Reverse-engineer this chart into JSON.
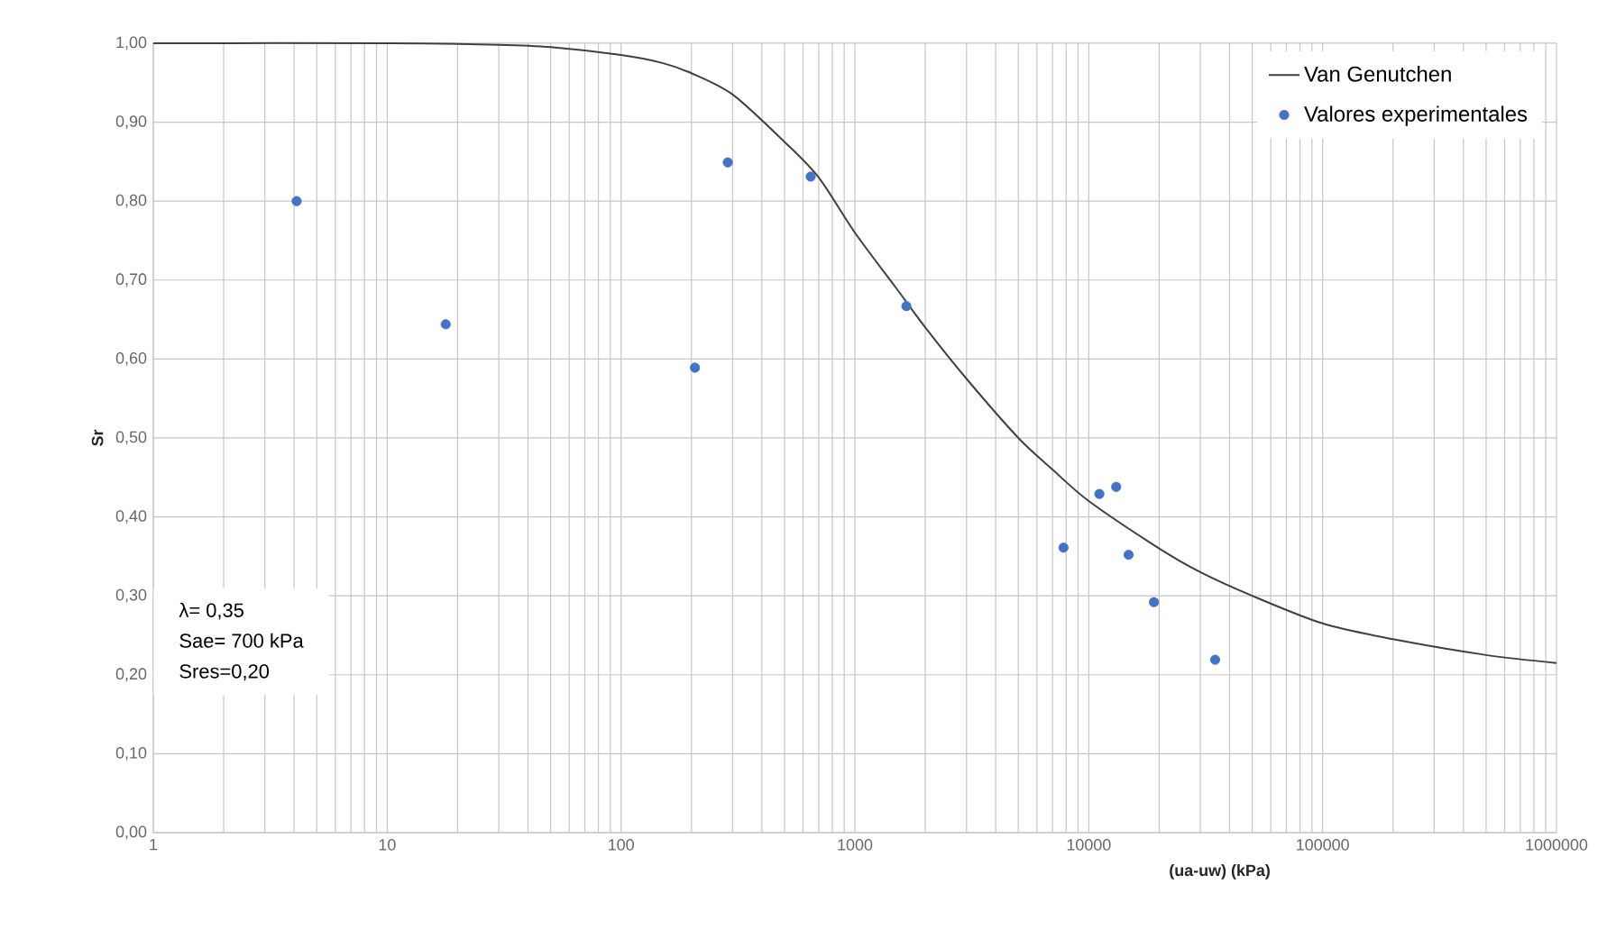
{
  "chart_data": {
    "type": "scatter",
    "xlabel": "(ua-uw) (kPa)",
    "ylabel": "Sr",
    "log": "x",
    "xlim": [
      1,
      1000000
    ],
    "xticks": [
      1,
      10,
      100,
      1000,
      10000,
      100000,
      1000000
    ],
    "ylim": [
      0,
      1
    ],
    "yticks": [
      {
        "value": 0,
        "label": "0,00"
      },
      {
        "value": 0.1,
        "label": "0,10"
      },
      {
        "value": 0.2,
        "label": "0,20"
      },
      {
        "value": 0.3,
        "label": "0,30"
      },
      {
        "value": 0.4,
        "label": "0,40"
      },
      {
        "value": 0.5,
        "label": "0,50"
      },
      {
        "value": 0.6,
        "label": "0,60"
      },
      {
        "value": 0.7,
        "label": "0,70"
      },
      {
        "value": 0.8,
        "label": "0,80"
      },
      {
        "value": 0.9,
        "label": "0,90"
      },
      {
        "value": 1.0,
        "label": "1,00"
      }
    ],
    "grid": true,
    "legend": "top right",
    "series": [
      {
        "name": "Van Genutchen",
        "type": "line",
        "color": "#404040",
        "x": [
          1,
          10,
          30,
          50,
          100,
          150,
          200,
          300,
          500,
          700,
          1000,
          1500,
          2000,
          3000,
          5000,
          7000,
          10000,
          20000,
          30000,
          50000,
          100000,
          200000,
          500000,
          1000000
        ],
        "values": [
          1.0,
          1.0,
          0.998,
          0.995,
          0.985,
          0.975,
          0.962,
          0.935,
          0.875,
          0.83,
          0.76,
          0.69,
          0.64,
          0.575,
          0.5,
          0.46,
          0.42,
          0.36,
          0.33,
          0.3,
          0.265,
          0.245,
          0.225,
          0.215
        ]
      },
      {
        "name": "Valores experimentales",
        "marker": "circle",
        "color": "#4472c4",
        "x": [
          4.1,
          17.8,
          207,
          286,
          647,
          1660,
          7800,
          11100,
          13100,
          14800,
          19000,
          34700
        ],
        "values": [
          0.8,
          0.644,
          0.589,
          0.849,
          0.831,
          0.667,
          0.361,
          0.429,
          0.438,
          0.352,
          0.292,
          0.219
        ]
      }
    ],
    "annotations": [
      "λ= 0,35",
      "Sae= 700 kPa",
      "Sres=0,20"
    ]
  }
}
